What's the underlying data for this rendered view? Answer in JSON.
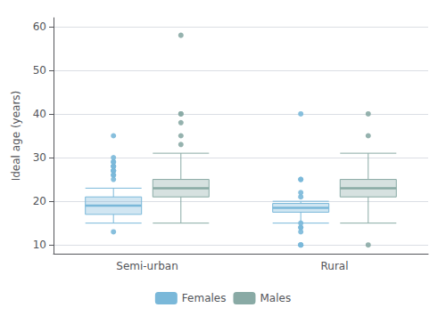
{
  "chart_data": {
    "type": "boxplot",
    "ylabel": "Ideal age (years)",
    "categories": [
      "Semi-urban",
      "Rural"
    ],
    "series": [
      {
        "name": "Females",
        "color": "#7ab8d9",
        "values": [
          {
            "whisker_lo": 15,
            "q1": 17,
            "median": 19,
            "q3": 21,
            "whisker_hi": 23,
            "outliers": [
              13,
              25,
              26,
              26,
              27,
              27,
              27,
              27,
              28,
              28,
              28,
              29,
              29,
              30,
              35
            ]
          },
          {
            "whisker_lo": 15,
            "q1": 17.5,
            "median": 18.5,
            "q3": 19.5,
            "whisker_hi": 20,
            "outliers": [
              10,
              10,
              10,
              13,
              14,
              14,
              15,
              21,
              22,
              25,
              25,
              40
            ]
          }
        ]
      },
      {
        "name": "Males",
        "color": "#89aaa5",
        "values": [
          {
            "whisker_lo": 15,
            "q1": 21,
            "median": 23,
            "q3": 25,
            "whisker_hi": 31,
            "outliers": [
              33,
              35,
              38,
              40,
              40,
              58
            ]
          },
          {
            "whisker_lo": 15,
            "q1": 21,
            "median": 23,
            "q3": 25,
            "whisker_hi": 31,
            "outliers": [
              10,
              35,
              40
            ]
          }
        ]
      }
    ],
    "ylim": [
      8,
      62
    ],
    "yticks": [
      10,
      20,
      30,
      40,
      50,
      60
    ],
    "grid": true,
    "legend": "bottom"
  }
}
